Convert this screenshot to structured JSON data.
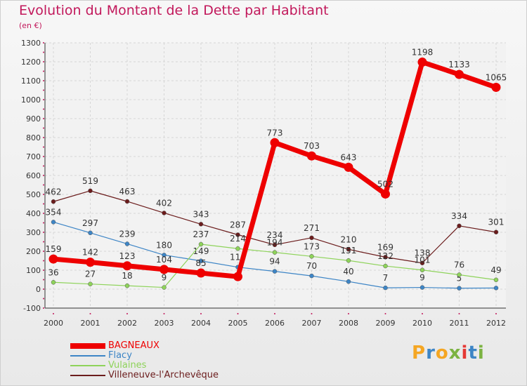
{
  "chart_data": {
    "type": "line",
    "title": "Evolution du Montant de la Dette par Habitant",
    "subtitle": "(en €)",
    "x": [
      "2000",
      "2001",
      "2002",
      "2003",
      "2004",
      "2005",
      "2006",
      "2007",
      "2008",
      "2009",
      "2010",
      "2011",
      "2012"
    ],
    "ylim": [
      -100,
      1300
    ],
    "yticks": [
      -100,
      0,
      100,
      200,
      300,
      400,
      500,
      600,
      700,
      800,
      900,
      1000,
      1100,
      1200,
      1300
    ],
    "grid": true,
    "legend_position": "bottom-left",
    "series": [
      {
        "name": "Villeneuve-l'Archevêque",
        "color": "#6b1c1c",
        "values": [
          462,
          519,
          463,
          402,
          343,
          287,
          234,
          271,
          210,
          169,
          138,
          334,
          301
        ],
        "labels": [
          "462",
          "519",
          "463",
          "402",
          "343",
          "287",
          "234",
          "271",
          "210",
          "169",
          "138",
          "334",
          "301"
        ]
      },
      {
        "name": "Flacy",
        "color": "#3d85c6",
        "values": [
          354,
          297,
          239,
          180,
          149,
          116,
          94,
          70,
          40,
          7,
          9,
          5,
          6
        ],
        "labels": [
          "354",
          "297",
          "239",
          "180",
          "149",
          "116",
          "94",
          "70",
          "40",
          "7",
          "9",
          "5",
          ""
        ]
      },
      {
        "name": "Vulaines",
        "color": "#8ed35a",
        "values": [
          36,
          27,
          18,
          9,
          237,
          214,
          194,
          173,
          151,
          122,
          101,
          76,
          49
        ],
        "labels": [
          "36",
          "27",
          "18",
          "9",
          "237",
          "214",
          "194",
          "173",
          "151",
          "122",
          "101",
          "76",
          "49"
        ]
      },
      {
        "name": "BAGNEAUX",
        "color": "#ee0000",
        "values": [
          159,
          142,
          123,
          104,
          85,
          66,
          773,
          703,
          643,
          502,
          1198,
          1133,
          1065
        ],
        "labels": [
          "159",
          "142",
          "123",
          "104",
          "85",
          "",
          "773",
          "703",
          "643",
          "502",
          "1198",
          "1133",
          "1065"
        ]
      }
    ],
    "legend": [
      "BAGNEAUX",
      "Flacy",
      "Vulaines",
      "Villeneuve-l'Archevêque"
    ]
  },
  "logo": {
    "text": "Proxiti",
    "colors": [
      "#f5a623",
      "#3d85c6",
      "#f5a623",
      "#7cb342",
      "#e53935",
      "#3d85c6",
      "#7cb342"
    ]
  }
}
